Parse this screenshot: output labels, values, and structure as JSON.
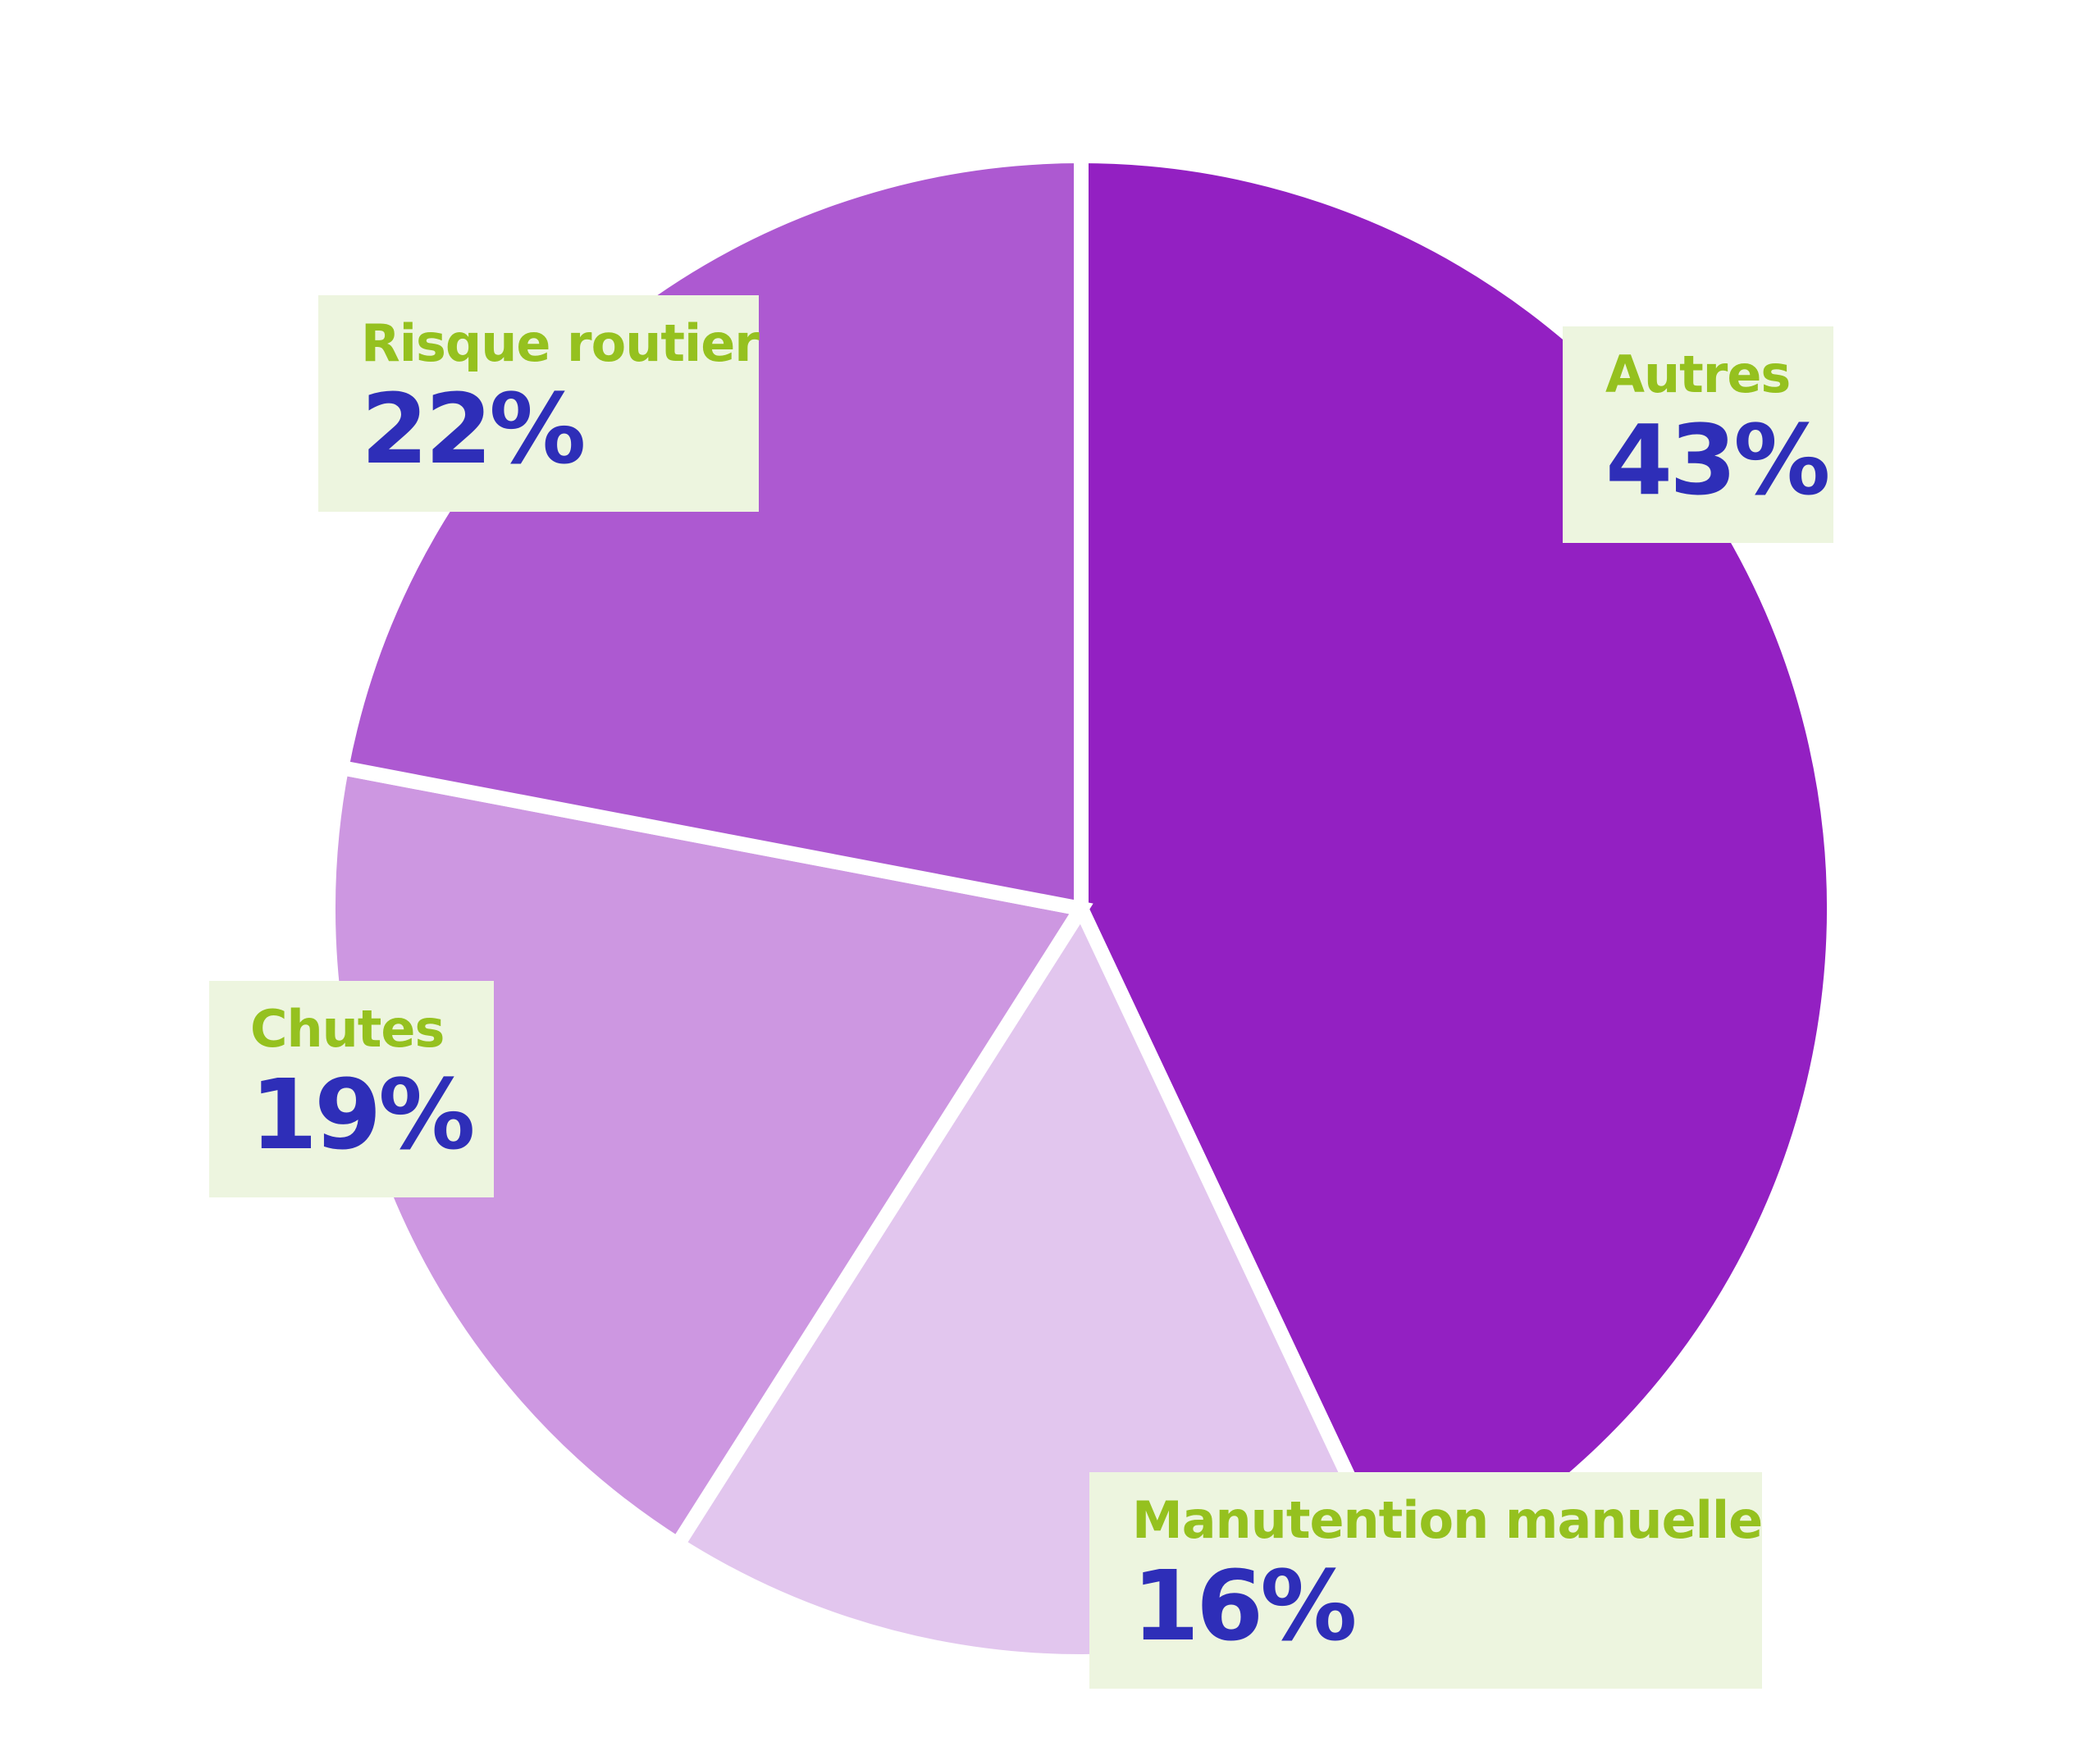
{
  "chart_data": {
    "type": "pie",
    "slices": [
      {
        "label": "Autres",
        "value": 43,
        "display": "43%",
        "color": "#9320c2"
      },
      {
        "label": "Manutention manuelle",
        "value": 16,
        "display": "16%",
        "color": "#e2c6ee"
      },
      {
        "label": "Chutes",
        "value": 19,
        "display": "19%",
        "color": "#cd97e1"
      },
      {
        "label": "Risque routier",
        "value": 22,
        "display": "22%",
        "color": "#ad59d1"
      }
    ],
    "start": "top",
    "direction": "clockwise",
    "label_name_color": "#95c11f",
    "label_value_color": "#2e2eb8",
    "label_background": "#edf5df"
  }
}
